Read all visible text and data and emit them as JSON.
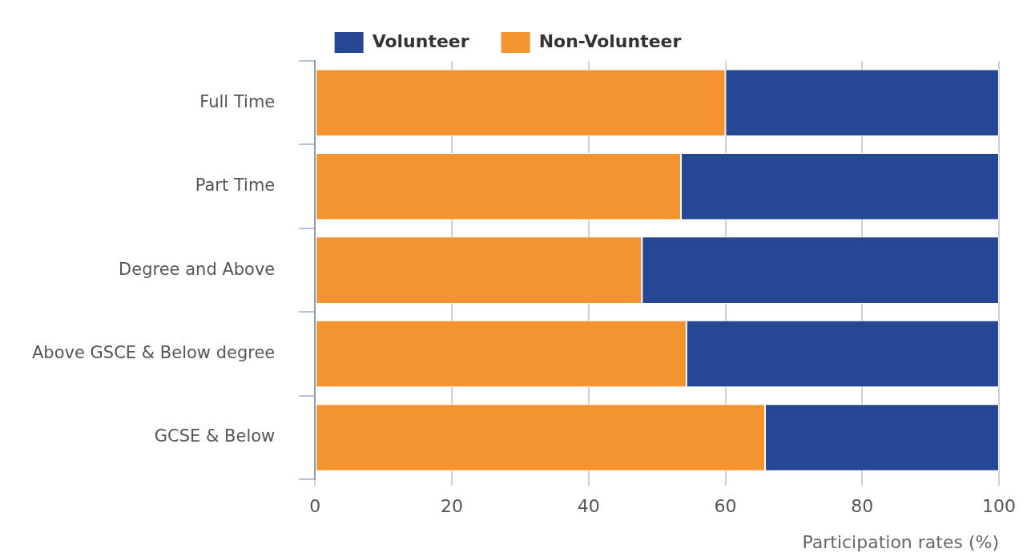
{
  "chart_data": {
    "type": "bar",
    "orientation": "horizontal",
    "stacked": true,
    "categories": [
      "Full Time",
      "Part Time",
      "Degree and Above",
      "Above GSCE & Below degree",
      "GCSE & Below"
    ],
    "series": [
      {
        "name": "Non-Volunteer",
        "color": "#f39430",
        "values": [
          60,
          53.5,
          47.8,
          54.3,
          65.8
        ]
      },
      {
        "name": "Volunteer",
        "color": "#264794",
        "values": [
          40,
          46.5,
          52.2,
          45.7,
          34.2
        ]
      }
    ],
    "xlabel": "Participation rates (%)",
    "xlim": [
      0,
      100
    ],
    "xticks": [
      0,
      20,
      40,
      60,
      80,
      100
    ],
    "grid": "x",
    "legend": "top"
  }
}
